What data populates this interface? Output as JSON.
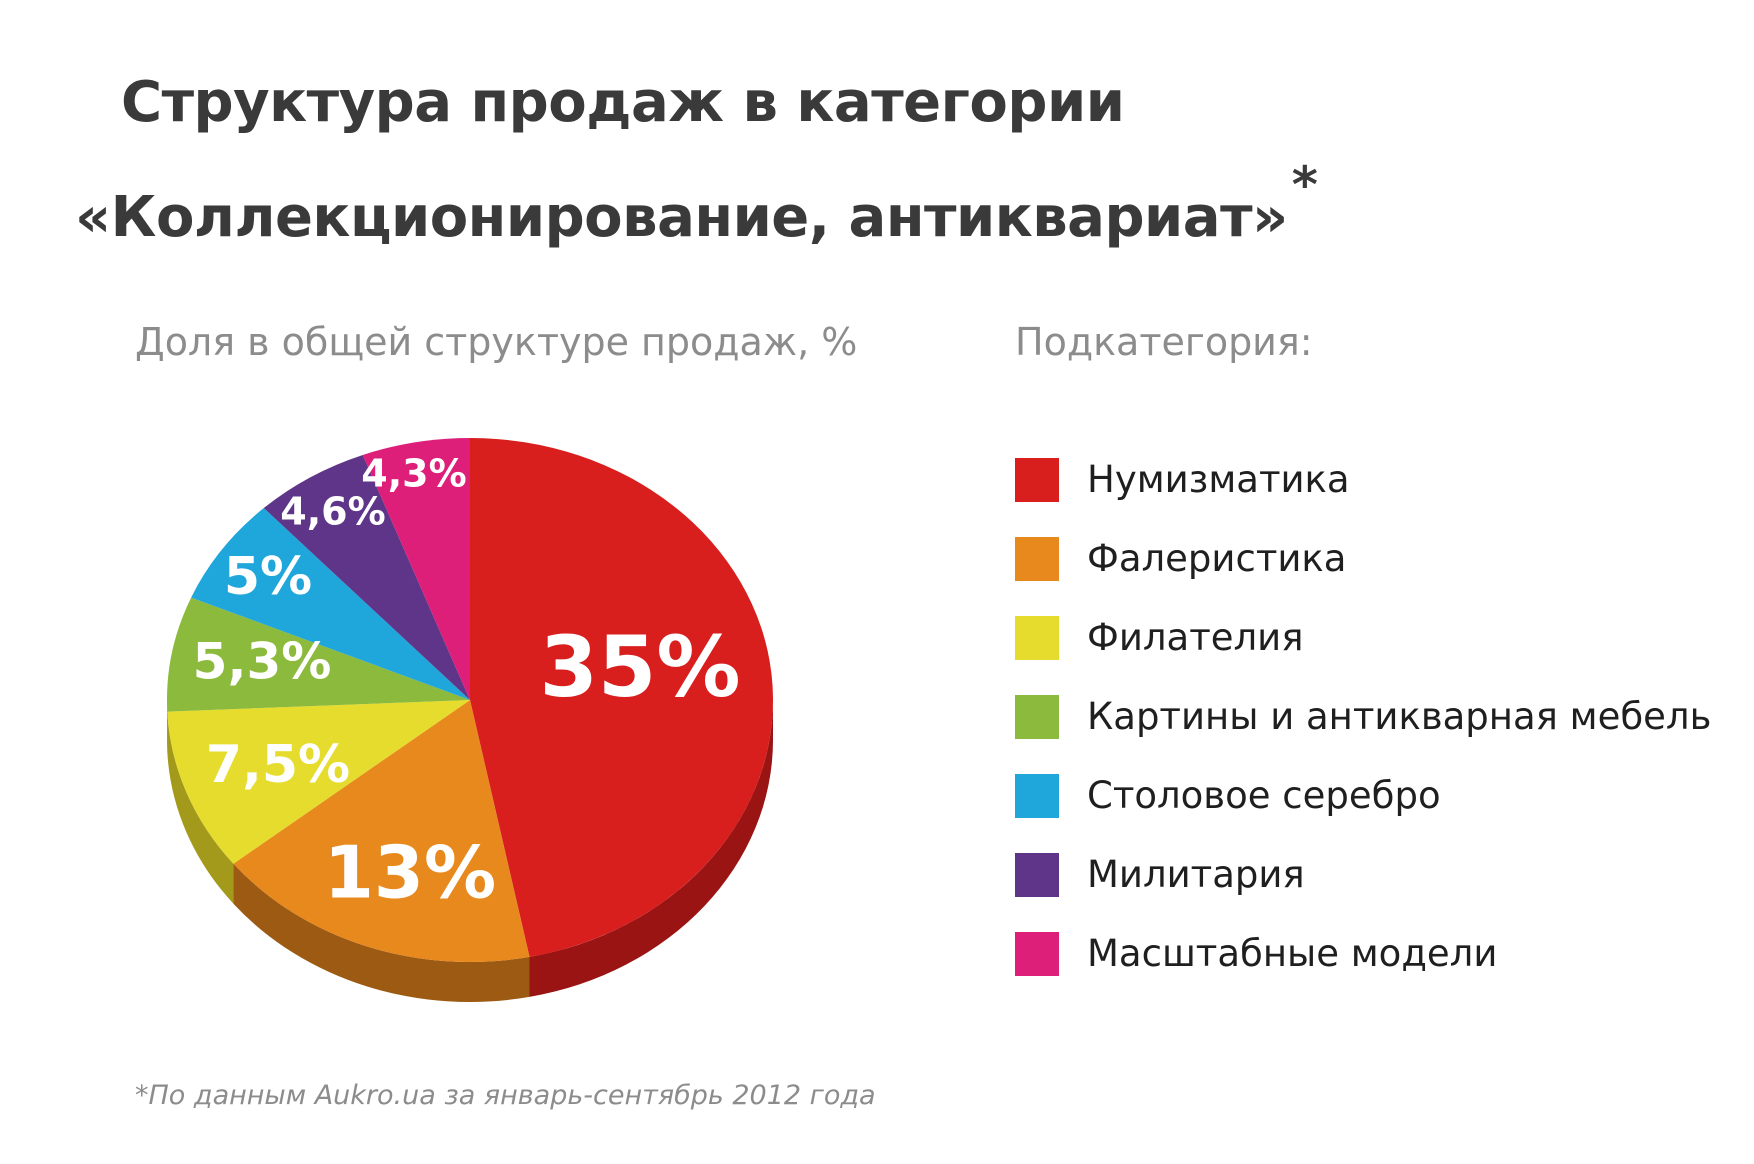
{
  "title": {
    "line1": "Структура продаж в категории",
    "line2": "«Коллекционирование, антиквариат»",
    "asterisk": "*"
  },
  "share_label": "Доля в общей структуре продаж, %",
  "legend_label": "Подкатегория:",
  "footnote": "*По данным Aukro.ua за январь-сентябрь 2012 года",
  "chart_data": {
    "type": "pie",
    "title": "Структура продаж в категории «Коллекционирование, антиквариат»",
    "value_caption": "Доля в общей структуре продаж, %",
    "legend_title": "Подкатегория:",
    "slices": [
      {
        "name": "Нумизматика",
        "value": 35,
        "label": "35%",
        "color": "#d91e1e",
        "side_color": "#9a1414"
      },
      {
        "name": "Фалеристика",
        "value": 13,
        "label": "13%",
        "color": "#e8891e",
        "side_color": "#9c5a12"
      },
      {
        "name": "Филателия",
        "value": 7.5,
        "label": "7,5%",
        "color": "#e6dc2e",
        "side_color": "#a39a1c"
      },
      {
        "name": "Картины и антикварная мебель",
        "value": 5.3,
        "label": "5,3%",
        "color": "#8cba3c",
        "side_color": "#5d7f25"
      },
      {
        "name": "Столовое серебро",
        "value": 5,
        "label": "5%",
        "color": "#1fa6db",
        "side_color": "#13709a"
      },
      {
        "name": "Милитария",
        "value": 4.6,
        "label": "4,6%",
        "color": "#5f3589",
        "side_color": "#3e215c"
      },
      {
        "name": "Масштабные модели",
        "value": 4.3,
        "label": "4,3%",
        "color": "#dd1f79",
        "side_color": "#9a1452"
      }
    ]
  }
}
